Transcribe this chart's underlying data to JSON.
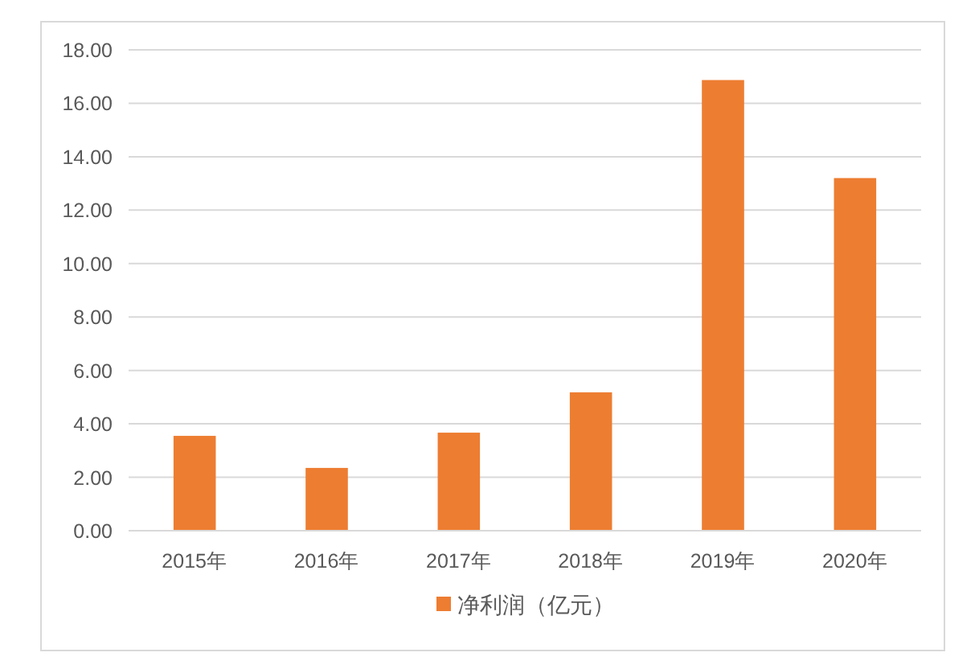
{
  "chart_data": {
    "type": "bar",
    "categories": [
      "2015年",
      "2016年",
      "2017年",
      "2018年",
      "2019年",
      "2020年"
    ],
    "series": [
      {
        "name": "净利润（亿元）",
        "color": "#ed7d31",
        "values": [
          3.55,
          2.35,
          3.67,
          5.18,
          16.87,
          13.2
        ]
      }
    ],
    "ylim": [
      0,
      18
    ],
    "yticks": [
      {
        "value": 0,
        "label": "0.00"
      },
      {
        "value": 2,
        "label": "2.00"
      },
      {
        "value": 4,
        "label": "4.00"
      },
      {
        "value": 6,
        "label": "6.00"
      },
      {
        "value": 8,
        "label": "8.00"
      },
      {
        "value": 10,
        "label": "10.00"
      },
      {
        "value": 12,
        "label": "12.00"
      },
      {
        "value": 14,
        "label": "14.00"
      },
      {
        "value": 16,
        "label": "16.00"
      },
      {
        "value": 18,
        "label": "18.00"
      }
    ],
    "grid": "y",
    "legend": "bottom"
  }
}
